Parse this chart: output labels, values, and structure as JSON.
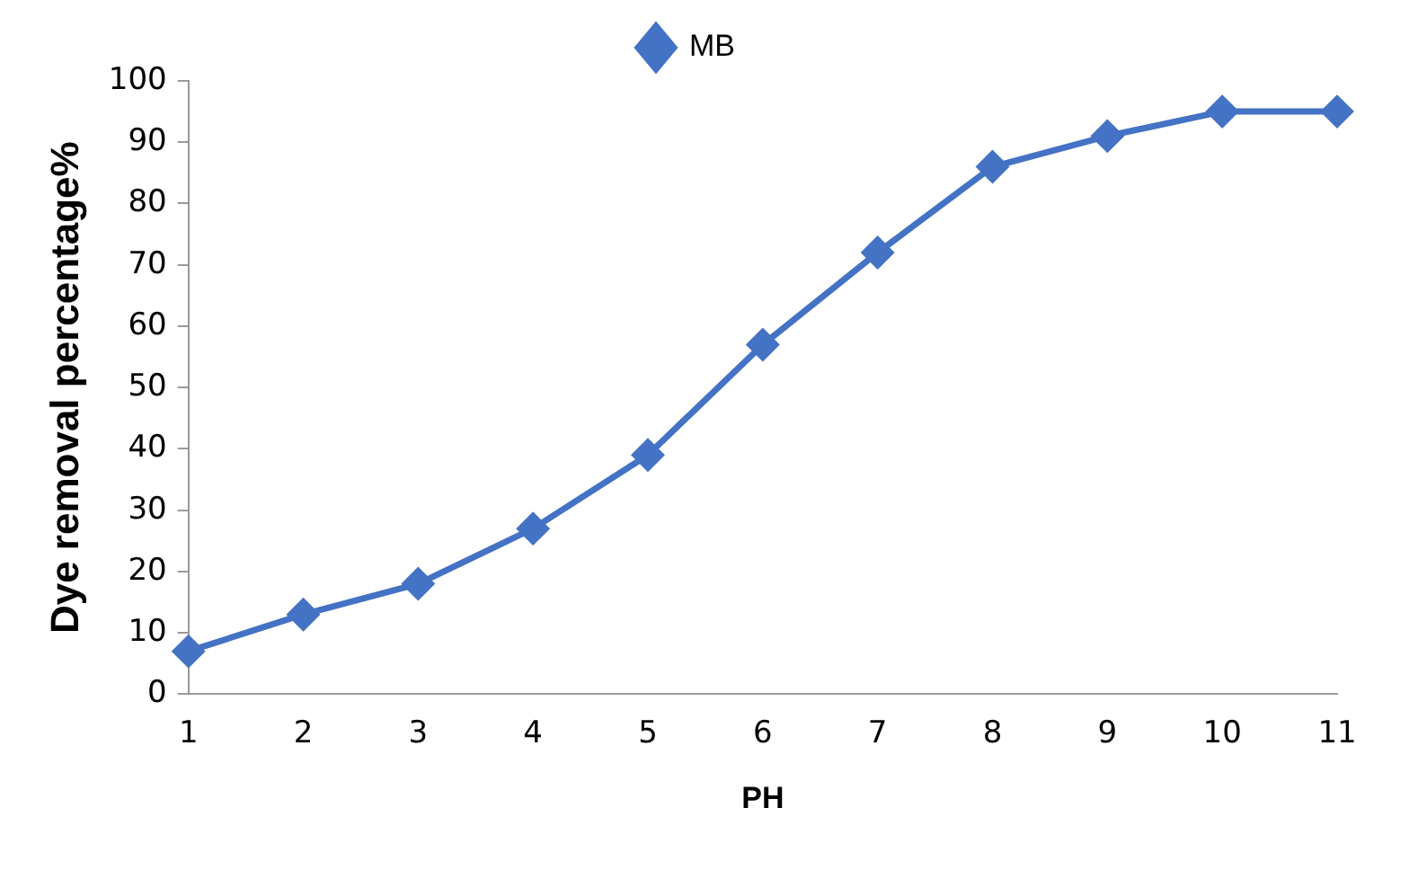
{
  "chart_data": {
    "type": "line",
    "xlabel": "PH",
    "ylabel": "Dye removal percentage%",
    "categories": [
      "1",
      "2",
      "3",
      "4",
      "5",
      "6",
      "7",
      "8",
      "9",
      "10",
      "11"
    ],
    "series": [
      {
        "name": "MB",
        "color": "#4472c4",
        "values": [
          7,
          13,
          18,
          27,
          39,
          57,
          72,
          86,
          91,
          95,
          95
        ]
      }
    ],
    "ylim": [
      0,
      100
    ],
    "yticks": [
      0,
      10,
      20,
      30,
      40,
      50,
      60,
      70,
      80,
      90,
      100
    ],
    "grid": false,
    "legend": "top",
    "marker": "diamond",
    "line_style": "solid"
  }
}
